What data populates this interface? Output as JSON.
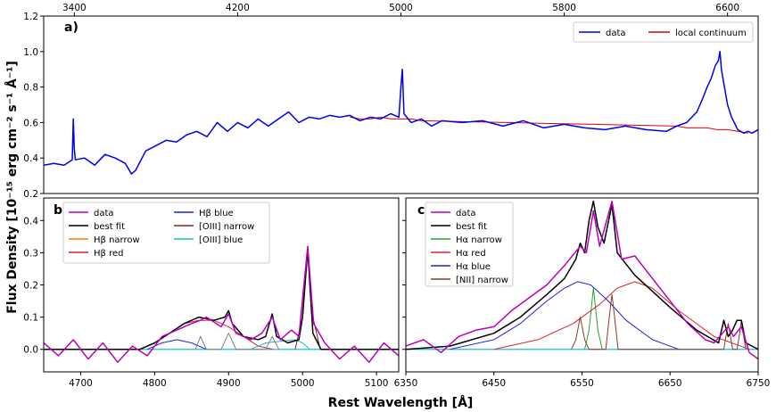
{
  "figure": {
    "xlabel_text": "Rest Wavelength [Å]",
    "ylabel_text": "Flux Density [10⁻¹⁵ erg cm⁻² s⁻¹ Å⁻¹]"
  },
  "colors": {
    "data_a": "#0000ee",
    "continuum": "#e00000",
    "data_bc": "#bb00bb",
    "best_fit": "#000000",
    "narrow_orange": "#ff7f0e",
    "red": "#d62728",
    "blue": "#1f1fdd",
    "oiii_narrow": "#8c1b1b",
    "oiii_blue": "#17becf",
    "ha_narrow": "#2ca02c",
    "nii_narrow": "#8c3b2b",
    "gray": "#7f7f7f"
  },
  "chart_data": [
    {
      "type": "line",
      "panel_label": "a)",
      "xlim": [
        3250,
        6750
      ],
      "ylim": [
        0.2,
        1.2
      ],
      "x_ticks": [
        3400,
        4200,
        5000,
        5800,
        6600
      ],
      "x_tick_labels": [
        "3400",
        "4200",
        "5000",
        "5800",
        "6600"
      ],
      "y_ticks": [
        0.2,
        0.4,
        0.6,
        0.8,
        1.0,
        1.2
      ],
      "y_tick_labels": [
        "0.2",
        "0.4",
        "0.6",
        "0.8",
        "1.0",
        "1.2"
      ],
      "legend": [
        "data",
        "local continuum"
      ],
      "series": [
        {
          "name": "data",
          "color_key": "data_a",
          "x": [
            3250,
            3300,
            3350,
            3390,
            3395,
            3400,
            3405,
            3450,
            3500,
            3550,
            3600,
            3650,
            3680,
            3700,
            3750,
            3800,
            3850,
            3900,
            3950,
            4000,
            4050,
            4100,
            4150,
            4200,
            4250,
            4300,
            4350,
            4400,
            4450,
            4500,
            4550,
            4600,
            4650,
            4700,
            4750,
            4800,
            4850,
            4900,
            4950,
            4990,
            5000,
            5007,
            5015,
            5050,
            5100,
            5150,
            5200,
            5300,
            5400,
            5500,
            5600,
            5700,
            5800,
            5900,
            6000,
            6100,
            6200,
            6300,
            6350,
            6400,
            6450,
            6480,
            6500,
            6520,
            6540,
            6555,
            6563,
            6570,
            6585,
            6600,
            6620,
            6650,
            6680,
            6700,
            6720,
            6750
          ],
          "y": [
            0.36,
            0.37,
            0.36,
            0.39,
            0.62,
            0.45,
            0.39,
            0.4,
            0.36,
            0.42,
            0.4,
            0.37,
            0.31,
            0.33,
            0.44,
            0.47,
            0.5,
            0.49,
            0.53,
            0.55,
            0.52,
            0.6,
            0.55,
            0.6,
            0.57,
            0.62,
            0.58,
            0.62,
            0.66,
            0.6,
            0.63,
            0.62,
            0.64,
            0.63,
            0.64,
            0.61,
            0.63,
            0.62,
            0.65,
            0.63,
            0.8,
            0.9,
            0.65,
            0.6,
            0.62,
            0.58,
            0.61,
            0.6,
            0.61,
            0.58,
            0.61,
            0.57,
            0.59,
            0.57,
            0.56,
            0.58,
            0.56,
            0.55,
            0.58,
            0.6,
            0.66,
            0.74,
            0.8,
            0.85,
            0.92,
            0.95,
            1.0,
            0.9,
            0.8,
            0.7,
            0.63,
            0.56,
            0.54,
            0.55,
            0.54,
            0.56
          ]
        },
        {
          "name": "local continuum",
          "color_key": "continuum",
          "x": [
            4750,
            4800,
            4850,
            4900,
            4950,
            5000,
            5050,
            5100,
            6350,
            6400,
            6450,
            6500,
            6550,
            6600,
            6650,
            6700
          ],
          "y": [
            0.63,
            0.62,
            0.62,
            0.63,
            0.62,
            0.62,
            0.62,
            0.61,
            0.58,
            0.57,
            0.57,
            0.57,
            0.56,
            0.56,
            0.55,
            0.54
          ]
        }
      ]
    },
    {
      "type": "line",
      "panel_label": "b)",
      "xlim": [
        4650,
        5130
      ],
      "ylim": [
        -0.07,
        0.47
      ],
      "x_ticks": [
        4700,
        4800,
        4900,
        5000,
        5100
      ],
      "x_tick_labels": [
        "4700",
        "4800",
        "4900",
        "5000",
        "5100"
      ],
      "y_ticks": [
        0.0,
        0.1,
        0.2,
        0.3,
        0.4
      ],
      "y_tick_labels": [
        "0.0",
        "0.1",
        "0.2",
        "0.3",
        "0.4"
      ],
      "legend": [
        "data",
        "best fit",
        "Hβ narrow",
        "Hβ red",
        "Hβ blue",
        "[OIII] narrow",
        "[OIII] blue"
      ],
      "series": [
        {
          "name": "data",
          "color_key": "data_bc",
          "x": [
            4650,
            4670,
            4690,
            4710,
            4730,
            4750,
            4770,
            4790,
            4810,
            4830,
            4850,
            4862,
            4870,
            4890,
            4900,
            4910,
            4930,
            4945,
            4959,
            4970,
            4985,
            4995,
            5007,
            5015,
            5030,
            5050,
            5070,
            5090,
            5110,
            5130
          ],
          "y": [
            0.02,
            -0.02,
            0.03,
            -0.03,
            0.02,
            -0.04,
            0.01,
            -0.02,
            0.04,
            0.06,
            0.08,
            0.09,
            0.1,
            0.07,
            0.11,
            0.05,
            0.03,
            0.05,
            0.1,
            0.03,
            0.06,
            0.04,
            0.32,
            0.08,
            0.02,
            -0.03,
            0.01,
            -0.04,
            0.02,
            -0.02
          ]
        },
        {
          "name": "best fit",
          "color_key": "best_fit",
          "x": [
            4650,
            4780,
            4800,
            4820,
            4840,
            4860,
            4880,
            4895,
            4900,
            4905,
            4920,
            4940,
            4950,
            4959,
            4965,
            4980,
            4995,
            5000,
            5007,
            5014,
            5025,
            5130
          ],
          "y": [
            0.0,
            0.0,
            0.02,
            0.05,
            0.08,
            0.1,
            0.09,
            0.1,
            0.12,
            0.08,
            0.04,
            0.03,
            0.04,
            0.11,
            0.04,
            0.02,
            0.03,
            0.1,
            0.31,
            0.05,
            0.0,
            0.0
          ]
        },
        {
          "name": "Hβ red",
          "color_key": "red",
          "x": [
            4780,
            4800,
            4820,
            4840,
            4860,
            4880,
            4900,
            4920,
            4940,
            4960
          ],
          "y": [
            0.0,
            0.02,
            0.05,
            0.08,
            0.09,
            0.09,
            0.07,
            0.04,
            0.01,
            0.0
          ]
        },
        {
          "name": "Hβ blue",
          "color_key": "blue",
          "x": [
            4790,
            4810,
            4830,
            4850,
            4870
          ],
          "y": [
            0.0,
            0.02,
            0.03,
            0.02,
            0.0
          ]
        },
        {
          "name": "[OIII] narrow",
          "color_key": "oiii_narrow",
          "x": [
            4990,
            5000,
            5007,
            5014,
            5024
          ],
          "y": [
            0.0,
            0.1,
            0.31,
            0.1,
            0.0
          ]
        },
        {
          "name": "[OIII] blue",
          "color_key": "oiii_blue",
          "x": [
            4930,
            4950,
            4990,
            5000,
            5010
          ],
          "y": [
            0.0,
            0.02,
            0.03,
            0.02,
            0.0
          ]
        },
        {
          "name": "gray components",
          "color_key": "gray",
          "x": [
            4855,
            4862,
            4870,
            4890,
            4900,
            4910,
            4950,
            4959,
            4968
          ],
          "y": [
            0.0,
            0.04,
            0.0,
            0.0,
            0.05,
            0.0,
            0.0,
            0.04,
            0.0
          ]
        }
      ]
    },
    {
      "type": "line",
      "panel_label": "c)",
      "xlim": [
        6350,
        6750
      ],
      "ylim": [
        -0.07,
        0.47
      ],
      "x_ticks": [
        6350,
        6450,
        6550,
        6650,
        6750
      ],
      "x_tick_labels": [
        "6350",
        "6450",
        "6550",
        "6650",
        "6750"
      ],
      "y_ticks": [
        0.0,
        0.1,
        0.2,
        0.3,
        0.4
      ],
      "legend": [
        "data",
        "best fit",
        "Hα narrow",
        "Hα red",
        "Hα blue",
        "[NII] narrow"
      ],
      "series": [
        {
          "name": "data",
          "color_key": "data_bc",
          "x": [
            6350,
            6370,
            6390,
            6410,
            6430,
            6450,
            6470,
            6490,
            6510,
            6530,
            6548,
            6555,
            6563,
            6570,
            6584,
            6595,
            6610,
            6630,
            6650,
            6670,
            6690,
            6700,
            6716,
            6722,
            6731,
            6740,
            6750
          ],
          "y": [
            0.01,
            0.03,
            -0.01,
            0.04,
            0.06,
            0.07,
            0.12,
            0.16,
            0.2,
            0.26,
            0.32,
            0.3,
            0.43,
            0.32,
            0.46,
            0.28,
            0.29,
            0.22,
            0.15,
            0.08,
            0.03,
            0.02,
            0.07,
            0.04,
            0.07,
            -0.01,
            -0.03
          ]
        },
        {
          "name": "best fit",
          "color_key": "best_fit",
          "x": [
            6350,
            6400,
            6450,
            6480,
            6510,
            6530,
            6543,
            6548,
            6553,
            6558,
            6563,
            6568,
            6575,
            6584,
            6590,
            6610,
            6630,
            6650,
            6680,
            6705,
            6711,
            6716,
            6721,
            6726,
            6731,
            6736,
            6750
          ],
          "y": [
            0.0,
            0.01,
            0.05,
            0.1,
            0.17,
            0.22,
            0.28,
            0.33,
            0.3,
            0.4,
            0.46,
            0.38,
            0.33,
            0.45,
            0.3,
            0.23,
            0.18,
            0.13,
            0.06,
            0.02,
            0.09,
            0.04,
            0.06,
            0.09,
            0.09,
            0.02,
            0.0
          ]
        },
        {
          "name": "Hα narrow",
          "color_key": "ha_narrow",
          "x": [
            6553,
            6558,
            6563,
            6568,
            6573
          ],
          "y": [
            0.0,
            0.06,
            0.19,
            0.06,
            0.0
          ]
        },
        {
          "name": "Hα red",
          "color_key": "red",
          "x": [
            6450,
            6500,
            6540,
            6570,
            6590,
            6610,
            6630,
            6660,
            6700,
            6740
          ],
          "y": [
            0.0,
            0.03,
            0.08,
            0.14,
            0.19,
            0.21,
            0.19,
            0.12,
            0.04,
            0.0
          ]
        },
        {
          "name": "Hα blue",
          "color_key": "blue",
          "x": [
            6400,
            6450,
            6480,
            6510,
            6530,
            6545,
            6560,
            6580,
            6600,
            6630,
            6660
          ],
          "y": [
            0.0,
            0.03,
            0.08,
            0.15,
            0.19,
            0.21,
            0.2,
            0.15,
            0.09,
            0.03,
            0.0
          ]
        },
        {
          "name": "[NII] narrow",
          "color_key": "nii_narrow",
          "x": [
            6538,
            6543,
            6548,
            6553,
            6558,
            6577,
            6581,
            6584,
            6587,
            6591,
            6711,
            6714,
            6716,
            6718,
            6721,
            6726,
            6729,
            6731,
            6733,
            6736
          ],
          "y": [
            0.0,
            0.03,
            0.1,
            0.03,
            0.0,
            0.0,
            0.1,
            0.17,
            0.1,
            0.0,
            0.0,
            0.05,
            0.08,
            0.05,
            0.0,
            0.0,
            0.05,
            0.09,
            0.05,
            0.0
          ]
        }
      ]
    }
  ]
}
